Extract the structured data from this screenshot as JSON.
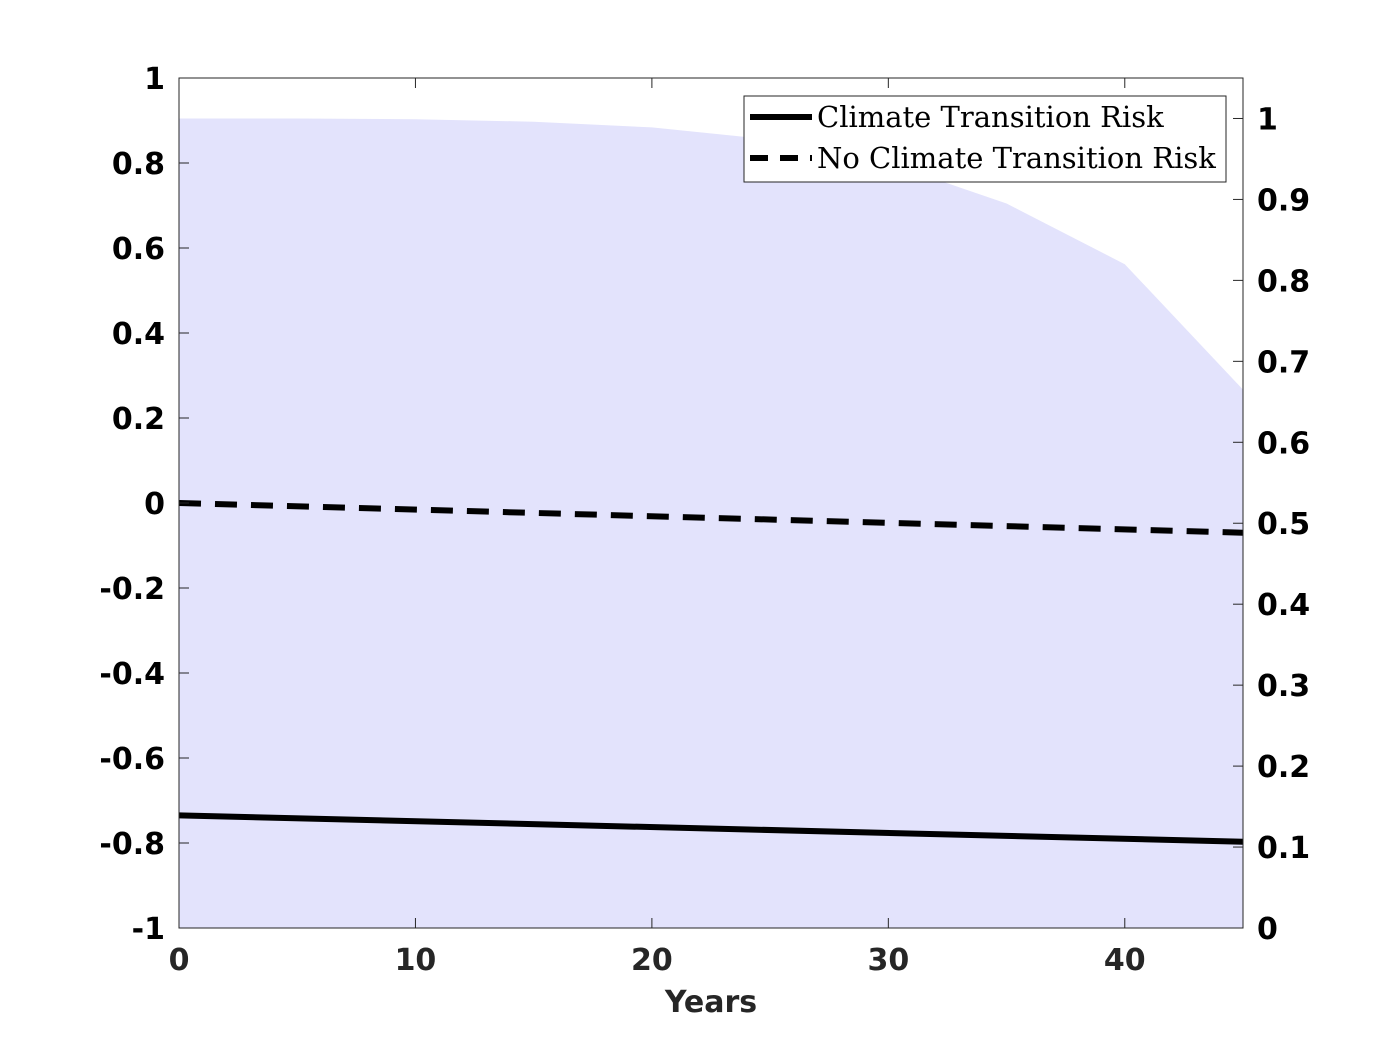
{
  "chart_data": {
    "type": "line",
    "xlabel": "Years",
    "ylabel_left": "",
    "ylabel_right": "",
    "xlim": [
      0,
      45
    ],
    "ylim_left": [
      -1,
      1
    ],
    "ylim_right": [
      0,
      1.05
    ],
    "grid": false,
    "legend_placement": "top-right",
    "x_ticks": [
      0,
      10,
      20,
      30,
      40
    ],
    "y_left_ticks": [
      -1,
      -0.8,
      -0.6,
      -0.4,
      -0.2,
      0,
      0.2,
      0.4,
      0.6,
      0.8,
      1
    ],
    "y_right_ticks": [
      0,
      0.1,
      0.2,
      0.3,
      0.4,
      0.5,
      0.6,
      0.7,
      0.8,
      0.9,
      1
    ],
    "series": [
      {
        "name": "Climate Transition Risk",
        "axis": "left",
        "style": "solid",
        "color": "#000000",
        "x": [
          0,
          45
        ],
        "values": [
          -0.735,
          -0.797
        ]
      },
      {
        "name": "No Climate Transition Risk",
        "axis": "left",
        "style": "dashed",
        "color": "#000000",
        "x": [
          0,
          45
        ],
        "values": [
          0.0,
          -0.07
        ]
      }
    ],
    "area": {
      "axis": "right",
      "color": "#e3e3fc",
      "x": [
        0,
        5,
        10,
        15,
        20,
        25,
        30,
        35,
        40,
        45
      ],
      "values": [
        1.0,
        1.0,
        0.999,
        0.996,
        0.989,
        0.974,
        0.945,
        0.895,
        0.82,
        0.665
      ]
    }
  }
}
